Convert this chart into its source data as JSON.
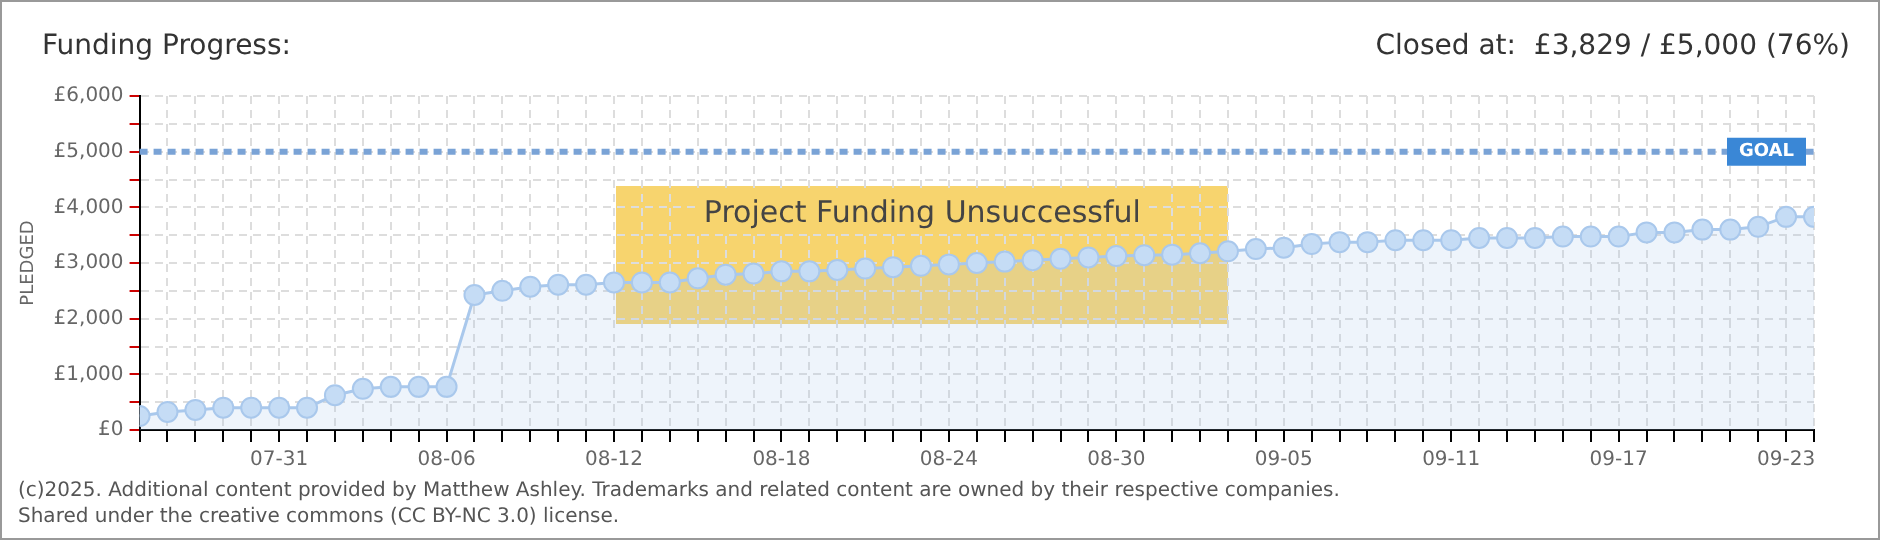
{
  "chart_data": {
    "type": "area",
    "title": "Funding Progress:",
    "subtitle": "Closed at:  £3,829 / £5,000 (76%)",
    "ylabel": "PLEDGED",
    "x": [
      "--07-26",
      "--07-27",
      "--07-28",
      "--07-29",
      "--07-30",
      "--07-31",
      "--08-01",
      "--08-02",
      "--08-03",
      "--08-04",
      "--08-05",
      "--08-06",
      "--08-07",
      "--08-08",
      "--08-09",
      "--08-10",
      "--08-11",
      "--08-12",
      "--08-13",
      "--08-14",
      "--08-15",
      "--08-16",
      "--08-17",
      "--08-18",
      "--08-19",
      "--08-20",
      "--08-21",
      "--08-22",
      "--08-23",
      "--08-24",
      "--08-25",
      "--08-26",
      "--08-27",
      "--08-28",
      "--08-29",
      "--08-30",
      "--08-31",
      "--09-01",
      "--09-02",
      "--09-03",
      "--09-04",
      "--09-05",
      "--09-06",
      "--09-07",
      "--09-08",
      "--09-09",
      "--09-10",
      "--09-11",
      "--09-12",
      "--09-13",
      "--09-14",
      "--09-15",
      "--09-16",
      "--09-17",
      "--09-18",
      "--09-19",
      "--09-20",
      "--09-21",
      "--09-22",
      "--09-23",
      "--09-24"
    ],
    "series": [
      {
        "color": "#a9c8ec",
        "values": [
          250,
          325,
          360,
          400,
          400,
          400,
          400,
          625,
          740,
          775,
          775,
          775,
          2425,
          2500,
          2575,
          2610,
          2610,
          2650,
          2650,
          2650,
          2725,
          2790,
          2810,
          2850,
          2850,
          2875,
          2900,
          2925,
          2950,
          2975,
          3000,
          3025,
          3050,
          3075,
          3100,
          3125,
          3140,
          3150,
          3175,
          3210,
          3250,
          3275,
          3340,
          3375,
          3375,
          3410,
          3410,
          3410,
          3450,
          3450,
          3450,
          3475,
          3475,
          3475,
          3550,
          3550,
          3600,
          3600,
          3650,
          3829,
          3829
        ]
      }
    ],
    "xlim": [
      "--07-26",
      "--09-24"
    ],
    "xticks": [
      {
        "value": "--07-26",
        "label": null
      },
      {
        "value": "--07-27",
        "label": null
      },
      {
        "value": "--07-28",
        "label": null
      },
      {
        "value": "--07-29",
        "label": null
      },
      {
        "value": "--07-30",
        "label": null
      },
      {
        "value": "--07-31",
        "label": "07-31"
      },
      {
        "value": "--08-01",
        "label": null
      },
      {
        "value": "--08-02",
        "label": null
      },
      {
        "value": "--08-03",
        "label": null
      },
      {
        "value": "--08-04",
        "label": null
      },
      {
        "value": "--08-05",
        "label": null
      },
      {
        "value": "--08-06",
        "label": "08-06"
      },
      {
        "value": "--08-07",
        "label": null
      },
      {
        "value": "--08-08",
        "label": null
      },
      {
        "value": "--08-09",
        "label": null
      },
      {
        "value": "--08-10",
        "label": null
      },
      {
        "value": "--08-11",
        "label": null
      },
      {
        "value": "--08-12",
        "label": "08-12"
      },
      {
        "value": "--08-13",
        "label": null
      },
      {
        "value": "--08-14",
        "label": null
      },
      {
        "value": "--08-15",
        "label": null
      },
      {
        "value": "--08-16",
        "label": null
      },
      {
        "value": "--08-17",
        "label": null
      },
      {
        "value": "--08-18",
        "label": "08-18"
      },
      {
        "value": "--08-19",
        "label": null
      },
      {
        "value": "--08-20",
        "label": null
      },
      {
        "value": "--08-21",
        "label": null
      },
      {
        "value": "--08-22",
        "label": null
      },
      {
        "value": "--08-23",
        "label": null
      },
      {
        "value": "--08-24",
        "label": "08-24"
      },
      {
        "value": "--08-25",
        "label": null
      },
      {
        "value": "--08-26",
        "label": null
      },
      {
        "value": "--08-27",
        "label": null
      },
      {
        "value": "--08-28",
        "label": null
      },
      {
        "value": "--08-29",
        "label": null
      },
      {
        "value": "--08-30",
        "label": "08-30"
      },
      {
        "value": "--08-31",
        "label": null
      },
      {
        "value": "--09-01",
        "label": null
      },
      {
        "value": "--09-02",
        "label": null
      },
      {
        "value": "--09-03",
        "label": null
      },
      {
        "value": "--09-04",
        "label": null
      },
      {
        "value": "--09-05",
        "label": "09-05"
      },
      {
        "value": "--09-06",
        "label": null
      },
      {
        "value": "--09-07",
        "label": null
      },
      {
        "value": "--09-08",
        "label": null
      },
      {
        "value": "--09-09",
        "label": null
      },
      {
        "value": "--09-10",
        "label": null
      },
      {
        "value": "--09-11",
        "label": "09-11"
      },
      {
        "value": "--09-12",
        "label": null
      },
      {
        "value": "--09-13",
        "label": null
      },
      {
        "value": "--09-14",
        "label": null
      },
      {
        "value": "--09-15",
        "label": null
      },
      {
        "value": "--09-16",
        "label": null
      },
      {
        "value": "--09-17",
        "label": "09-17"
      },
      {
        "value": "--09-18",
        "label": null
      },
      {
        "value": "--09-19",
        "label": null
      },
      {
        "value": "--09-20",
        "label": null
      },
      {
        "value": "--09-21",
        "label": null
      },
      {
        "value": "--09-22",
        "label": null
      },
      {
        "value": "--09-23",
        "label": "09-23"
      },
      {
        "value": "--09-24",
        "label": null
      }
    ],
    "ylim": [
      0,
      6000
    ],
    "yticks": [
      {
        "value": 0,
        "label": "£0"
      },
      {
        "value": 500,
        "label": null
      },
      {
        "value": 1000,
        "label": "£1,000"
      },
      {
        "value": 1500,
        "label": null
      },
      {
        "value": 2000,
        "label": "£2,000"
      },
      {
        "value": 2500,
        "label": null
      },
      {
        "value": 3000,
        "label": "£3,000"
      },
      {
        "value": 3500,
        "label": null
      },
      {
        "value": 4000,
        "label": "£4,000"
      },
      {
        "value": 4500,
        "label": null
      },
      {
        "value": 5000,
        "label": "£5,000"
      },
      {
        "value": 5500,
        "label": null
      },
      {
        "value": 6000,
        "label": "£6,000"
      }
    ],
    "ref_lines": [
      {
        "axis": "y",
        "value": 5000,
        "label": "GOAL",
        "color": "#7aa3d6",
        "line_style": "dashed"
      }
    ],
    "grid": true,
    "marker": "circle",
    "legend": false,
    "annotations": [
      "Project Funding Unsuccessful",
      "(c)2025. Additional content provided by Matthew Ashley. Trademarks and related content are owned by their respective companies.",
      "Shared under the creative commons (CC BY-NC 3.0) license."
    ]
  }
}
